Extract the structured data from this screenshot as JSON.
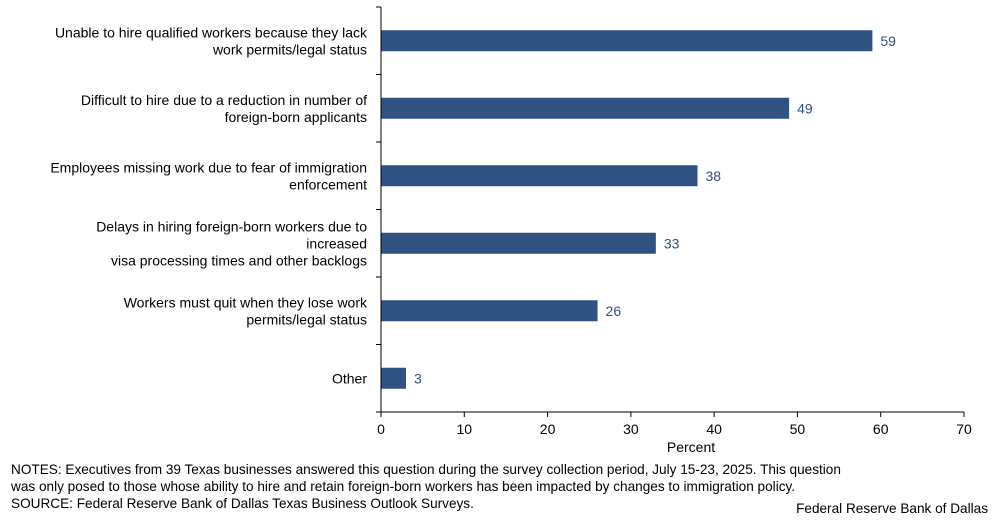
{
  "chart_data": {
    "type": "bar",
    "orientation": "horizontal",
    "categories": [
      [
        "Unable to hire qualified workers because they lack",
        "work permits/legal status"
      ],
      [
        "Difficult to hire due to a reduction in number of",
        "foreign-born applicants"
      ],
      [
        "Employees missing work due to fear of immigration",
        "enforcement"
      ],
      [
        "Delays in hiring foreign-born workers due to",
        "increased",
        "visa processing times and other backlogs"
      ],
      [
        "Workers must quit when they lose work",
        "permits/legal status"
      ],
      [
        "Other"
      ]
    ],
    "values": [
      59,
      49,
      38,
      33,
      26,
      3
    ],
    "data_labels": [
      "59",
      "49",
      "38",
      "33",
      "26",
      "3"
    ],
    "xlabel": "Percent",
    "ylabel": "",
    "xlim": [
      0,
      70
    ],
    "xticks": [
      0,
      10,
      20,
      30,
      40,
      50,
      60,
      70
    ],
    "grid": false,
    "legend": "none",
    "colors": {
      "bar": "#2f5282",
      "data_label": "#2f5282",
      "axis": "#000000"
    }
  },
  "footer": {
    "notes_line1": "NOTES: Executives from 39 Texas businesses answered this question during the survey collection period, July 15-23, 2025. This question",
    "notes_line2": "was only posed to those whose ability to hire and retain foreign-born workers has been impacted by changes to immigration policy.",
    "source": "SOURCE: Federal Reserve Bank of Dallas Texas Business Outlook Surveys.",
    "credit": "Federal Reserve Bank of Dallas"
  }
}
